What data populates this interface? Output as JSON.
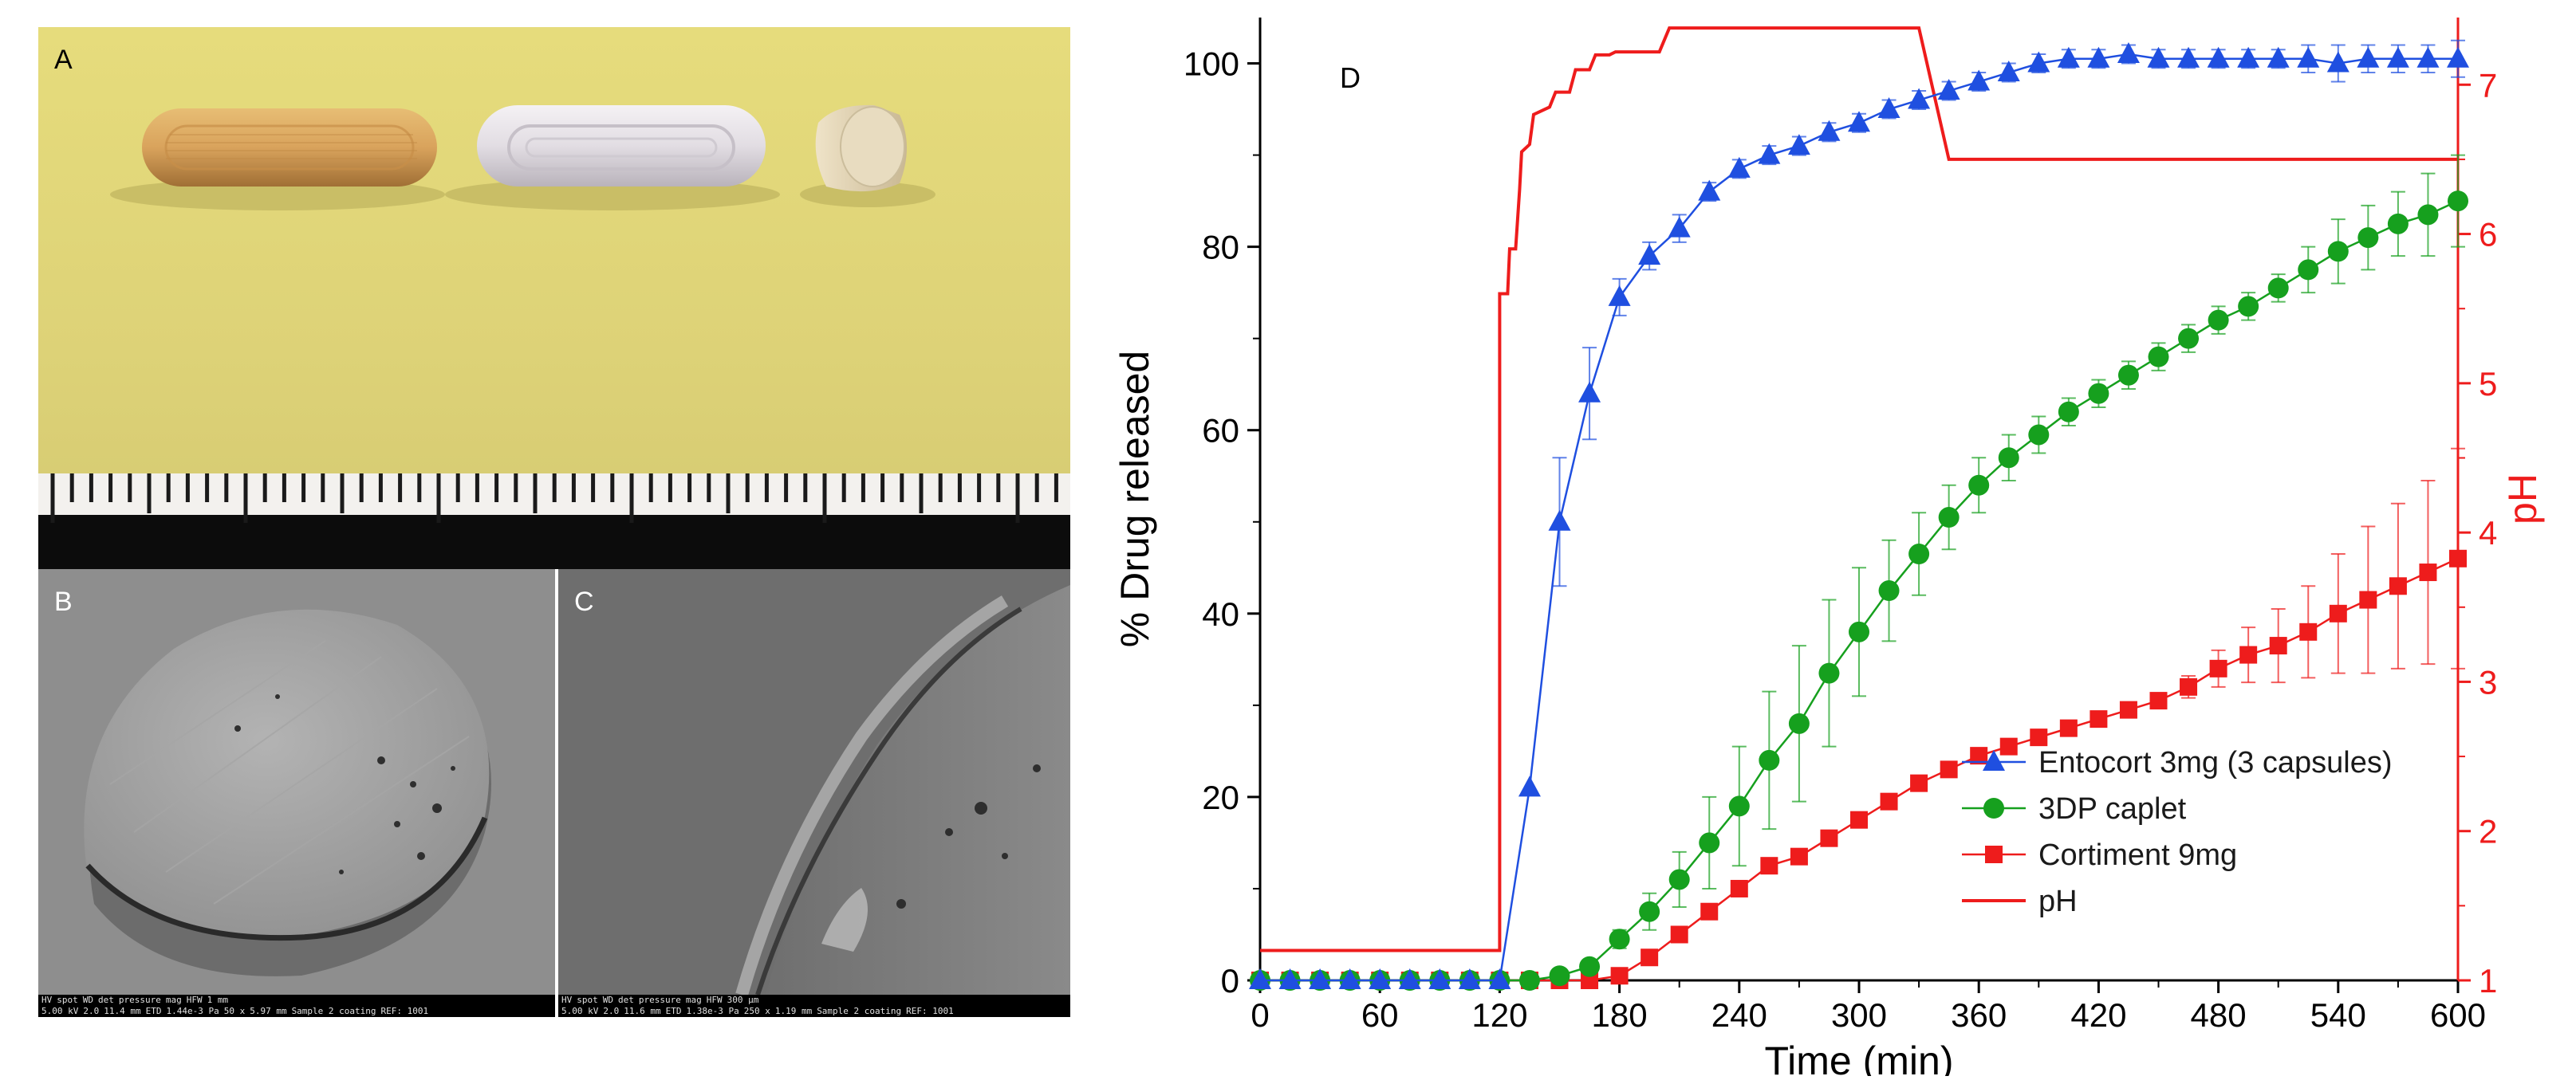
{
  "panels": {
    "a_label": "A",
    "b_label": "B",
    "c_label": "C"
  },
  "sem_b": {
    "headers": [
      "HV",
      "spot",
      "WD",
      "det",
      "pressure",
      "mag",
      "HFW"
    ],
    "values": [
      "5.00 kV",
      "2.0",
      "11.4 mm",
      "ETD",
      "1.44e-3 Pa",
      "50 x",
      "5.97 mm"
    ],
    "scale": "1 mm",
    "sample": "Sample 2 coating",
    "ref": "REF: 1001"
  },
  "sem_c": {
    "headers": [
      "HV",
      "spot",
      "WD",
      "det",
      "pressure",
      "mag",
      "HFW"
    ],
    "values": [
      "5.00 kV",
      "2.0",
      "11.6 mm",
      "ETD",
      "1.38e-3 Pa",
      "250 x",
      "1.19 mm"
    ],
    "scale": "300 µm",
    "sample": "Sample 2 coating",
    "ref": "REF: 1001"
  },
  "chart_data": {
    "type": "line",
    "panel_label": "D",
    "xlabel": "Time (min)",
    "ylabel": "% Drug released",
    "y2label": "pH",
    "xlim": [
      0,
      600
    ],
    "ylim": [
      0,
      105
    ],
    "y2lim": [
      1,
      7.45
    ],
    "x_ticks": [
      0,
      60,
      120,
      180,
      240,
      300,
      360,
      420,
      480,
      540,
      600
    ],
    "y_ticks": [
      0,
      20,
      40,
      60,
      80,
      100
    ],
    "y2_ticks": [
      1,
      2,
      3,
      4,
      5,
      6,
      7
    ],
    "grid": false,
    "legend_position": "bottom-right",
    "colors": {
      "entocort": "#1f4fe0",
      "caplet": "#16a01e",
      "cortiment": "#ee1c1c",
      "ph": "#ee1c1c",
      "axis2": "#ee1c1c"
    },
    "series": [
      {
        "name": "Entocort 3mg (3 capsules)",
        "marker": "triangle",
        "x": [
          0,
          15,
          30,
          45,
          60,
          75,
          90,
          105,
          120,
          135,
          150,
          165,
          180,
          195,
          210,
          225,
          240,
          255,
          270,
          285,
          300,
          315,
          330,
          345,
          360,
          375,
          390,
          405,
          420,
          435,
          450,
          465,
          480,
          495,
          510,
          525,
          540,
          555,
          570,
          585,
          600
        ],
        "y": [
          0,
          0,
          0,
          0,
          0,
          0,
          0,
          0,
          0,
          21,
          50,
          64,
          74.5,
          79,
          82,
          86,
          88.5,
          90,
          91,
          92.5,
          93.5,
          95,
          96,
          97,
          98,
          99,
          100,
          100.5,
          100.5,
          101,
          100.5,
          100.5,
          100.5,
          100.5,
          100.5,
          100.5,
          100,
          100.5,
          100.5,
          100.5,
          100.5
        ],
        "err": [
          0,
          0,
          0,
          0,
          0,
          0,
          0,
          0,
          0,
          0,
          7,
          5,
          2,
          1.5,
          1.5,
          1,
          1,
          1,
          1,
          1,
          1,
          1,
          1,
          1,
          1,
          1,
          1,
          1,
          1,
          1,
          1,
          1,
          1,
          1,
          1,
          1.5,
          2,
          1.5,
          1.5,
          1.5,
          2
        ]
      },
      {
        "name": "3DP caplet",
        "marker": "circle",
        "x": [
          0,
          15,
          30,
          45,
          60,
          75,
          90,
          105,
          120,
          135,
          150,
          165,
          180,
          195,
          210,
          225,
          240,
          255,
          270,
          285,
          300,
          315,
          330,
          345,
          360,
          375,
          390,
          405,
          420,
          435,
          450,
          465,
          480,
          495,
          510,
          525,
          540,
          555,
          570,
          585,
          600
        ],
        "y": [
          0,
          0,
          0,
          0,
          0,
          0,
          0,
          0,
          0,
          0,
          0.5,
          1.5,
          4.5,
          7.5,
          11,
          15,
          19,
          24,
          28,
          33.5,
          38,
          42.5,
          46.5,
          50.5,
          54,
          57,
          59.5,
          62,
          64,
          66,
          68,
          70,
          72,
          73.5,
          75.5,
          77.5,
          79.5,
          81,
          82.5,
          83.5,
          85
        ],
        "err": [
          0,
          0,
          0,
          0,
          0,
          0,
          0,
          0,
          0,
          0,
          0,
          0.5,
          1,
          2,
          3,
          5,
          6.5,
          7.5,
          8.5,
          8,
          7,
          5.5,
          4.5,
          3.5,
          3,
          2.5,
          2,
          1.5,
          1.5,
          1.5,
          1.5,
          1.5,
          1.5,
          1.5,
          1.5,
          2.5,
          3.5,
          3.5,
          3.5,
          4.5,
          5
        ]
      },
      {
        "name": "Cortiment 9mg",
        "marker": "square",
        "x": [
          0,
          15,
          30,
          45,
          60,
          75,
          90,
          105,
          120,
          135,
          150,
          165,
          180,
          195,
          210,
          225,
          240,
          255,
          270,
          285,
          300,
          315,
          330,
          345,
          360,
          375,
          390,
          405,
          420,
          435,
          450,
          465,
          480,
          495,
          510,
          525,
          540,
          555,
          570,
          585,
          600
        ],
        "y": [
          0,
          0,
          0,
          0,
          0,
          0,
          0,
          0,
          0,
          0,
          0,
          0,
          0.5,
          2.5,
          5,
          7.5,
          10,
          12.5,
          13.5,
          15.5,
          17.5,
          19.5,
          21.5,
          23,
          24.5,
          25.5,
          26.5,
          27.5,
          28.5,
          29.5,
          30.5,
          32,
          34,
          35.5,
          36.5,
          38,
          40,
          41.5,
          43,
          44.5,
          46
        ],
        "err": [
          0,
          0,
          0,
          0,
          0,
          0,
          0,
          0,
          0,
          0,
          0,
          0,
          0,
          0.5,
          0.8,
          0.8,
          0.8,
          0.8,
          0.8,
          0.8,
          0.8,
          0.8,
          0.8,
          0.8,
          0.8,
          0.8,
          0.8,
          0.8,
          0.8,
          0.8,
          0.8,
          1.2,
          2,
          3,
          4,
          5,
          6.5,
          8,
          9,
          10,
          12
        ]
      },
      {
        "name": "pH",
        "marker": "none",
        "axis": "right",
        "x": [
          0,
          120,
          120,
          124,
          125,
          128,
          130,
          131,
          135,
          137,
          145,
          148,
          155,
          158,
          165,
          168,
          175,
          178,
          200,
          205,
          330,
          345,
          600
        ],
        "y": [
          1.2,
          1.2,
          5.6,
          5.6,
          5.9,
          5.9,
          6.3,
          6.55,
          6.6,
          6.8,
          6.85,
          6.95,
          6.95,
          7.1,
          7.1,
          7.2,
          7.2,
          7.22,
          7.22,
          7.38,
          7.38,
          6.5,
          6.5
        ]
      }
    ]
  }
}
